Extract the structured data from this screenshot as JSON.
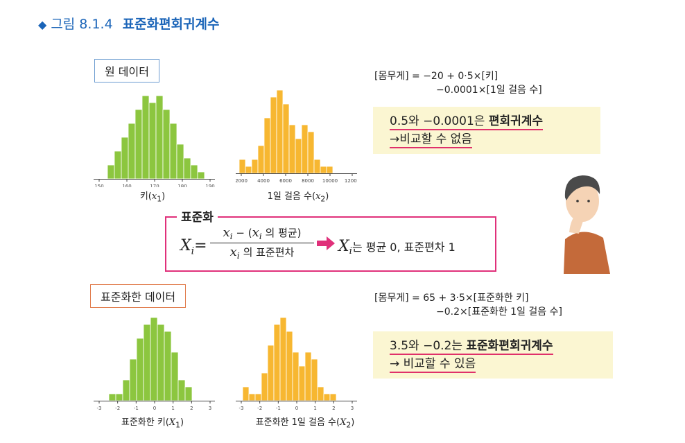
{
  "figure": {
    "marker": "◆",
    "number": "그림 8.1.4",
    "title": "표준화편회귀계수"
  },
  "raw": {
    "label": "원 데이터",
    "hist_height": {
      "xlabel_pre": "키(",
      "xlabel_var": "x",
      "xlabel_sub": "1",
      "xlabel_post": ")",
      "ticks": [
        "150",
        "160",
        "170",
        "180",
        "190"
      ]
    },
    "hist_steps": {
      "xlabel_pre": "1일 걸음 수(",
      "xlabel_var": "x",
      "xlabel_sub": "2",
      "xlabel_post": ")",
      "ticks": [
        "2000",
        "4000",
        "6000",
        "8000",
        "10000",
        "12000"
      ]
    },
    "equation_line1": "[몸무게] = −20 + 0·5×[키]",
    "equation_line2": "−0.0001×[1일 걸음 수]",
    "note_line1_pre": "0.5와 −0.0001은 ",
    "note_line1_bold": "편회귀계수",
    "note_line2": "→비교할 수 없음"
  },
  "standardize": {
    "title": "표준화",
    "lhs_var": "X",
    "lhs_sub": "i",
    "num_var": "x",
    "num_sub": "i",
    "num_mid": " − (",
    "num_var2": "x",
    "num_sub2": "i",
    "num_post": " 의 평균)",
    "den_var": "x",
    "den_sub": "i",
    "den_post": " 의 표준편차",
    "result_var": "X",
    "result_sub": "i",
    "result_text": "는 평균 0, 표준편차 1"
  },
  "std": {
    "label": "표준화한 데이터",
    "hist_height": {
      "xlabel_pre": "표준화한 키(",
      "xlabel_var": "X",
      "xlabel_sub": "1",
      "xlabel_post": ")",
      "ticks": [
        "-3",
        "-2",
        "-1",
        "0",
        "1",
        "2",
        "3"
      ]
    },
    "hist_steps": {
      "xlabel_pre": "표준화한 1일 걸음 수(",
      "xlabel_var": "X",
      "xlabel_sub": "2",
      "xlabel_post": ")",
      "ticks": [
        "-3",
        "-2",
        "-1",
        "0",
        "1",
        "2",
        "3"
      ]
    },
    "equation_line1": "[몸무게] = 65 + 3·5×[표준화한 키]",
    "equation_line2": "−0.2×[표준화한 1일 걸음 수]",
    "note_line1_pre": "3.5와 −0.2는 ",
    "note_line1_bold": "표준화편회귀계수",
    "note_line2": "→ 비교할 수 있음"
  },
  "colors": {
    "title_blue": "#1a64b8",
    "green_bar": "#8cc63f",
    "orange_bar": "#f7b731",
    "pink": "#e0307a",
    "note_bg": "#fbf6d2"
  },
  "chart_data": [
    {
      "type": "bar",
      "values": [
        2,
        4,
        6,
        8,
        10,
        12,
        11,
        12,
        10,
        8,
        5,
        3,
        2,
        1
      ],
      "color": "#8cc63f"
    },
    {
      "type": "bar",
      "values": [
        2,
        1,
        2,
        4,
        8,
        11,
        12,
        10,
        7,
        5,
        7,
        6,
        2,
        1,
        1
      ],
      "color": "#f7b731"
    },
    {
      "type": "bar",
      "values": [
        1,
        1,
        3,
        6,
        9,
        11,
        12,
        11,
        10,
        7,
        3,
        2
      ],
      "color": "#8cc63f"
    },
    {
      "type": "bar",
      "values": [
        2,
        1,
        1,
        4,
        8,
        11,
        12,
        10,
        7,
        5,
        7,
        6,
        2,
        1,
        1
      ],
      "color": "#f7b731"
    }
  ]
}
